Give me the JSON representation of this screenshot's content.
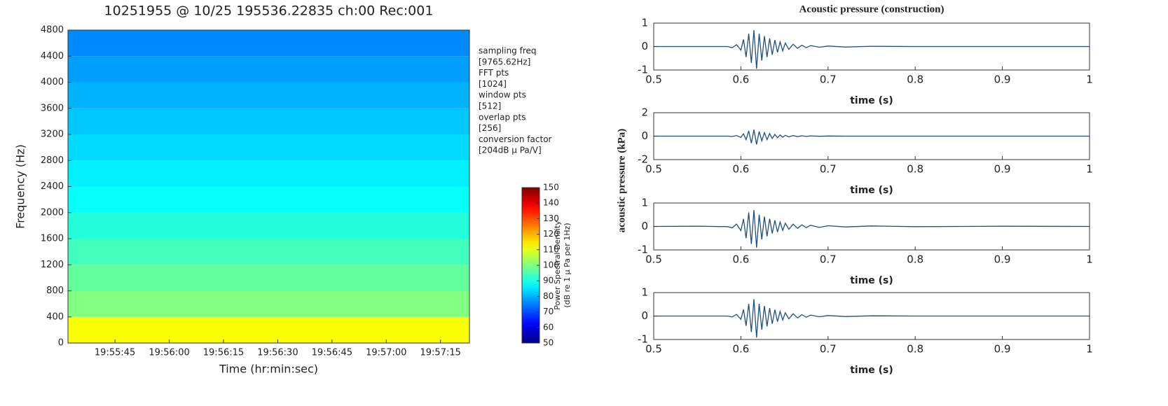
{
  "chart_data": [
    {
      "type": "heatmap",
      "title": "10251955 @ 10/25 195536.22835 ch:00 Rec:001",
      "xlabel": "Time (hr:min:sec)",
      "ylabel": "Frequency (Hz)",
      "xlim": [
        "19:55:32",
        "19:57:23"
      ],
      "xticks": [
        "19:55:45",
        "19:56:00",
        "19:56:15",
        "19:56:30",
        "19:56:45",
        "19:57:00",
        "19:57:15"
      ],
      "ylim": [
        0,
        4800
      ],
      "yticks": [
        0,
        400,
        800,
        1200,
        1600,
        2000,
        2400,
        2800,
        3200,
        3600,
        4000,
        4400,
        4800
      ],
      "y_bins": [
        0,
        400,
        800,
        1200,
        1600,
        2000,
        2400,
        2800,
        3200,
        3600,
        4000,
        4400,
        4800
      ],
      "values": [
        112,
        100,
        97,
        94,
        91,
        88,
        86,
        84,
        82,
        80,
        78,
        76
      ],
      "colormap": "jet",
      "zlim": [
        50,
        150
      ],
      "zticks": [
        50,
        60,
        70,
        80,
        90,
        100,
        110,
        120,
        130,
        140,
        150
      ],
      "colorbar_label": [
        "Power Spectral Density",
        "(dB re 1 μ Pa per 1Hz)"
      ],
      "annotations": [
        "sampling freq",
        "[9765.62Hz]",
        "FFT pts",
        "[1024]",
        "window pts",
        "[512]",
        "overlap pts",
        "[256]",
        "conversion factor",
        "[204dB    μ Pa/V]"
      ]
    },
    {
      "type": "line",
      "title": "Acoustic pressure (construction)",
      "ylabel": "acoustic pressure (kPa)",
      "xlabel": "time (s)",
      "color": "#1f4f82",
      "xlim": [
        0.5,
        1
      ],
      "xticks": [
        0.5,
        0.6,
        0.7,
        0.8,
        0.9,
        1
      ],
      "ylim": [
        -1,
        1
      ],
      "yticks": [
        -1,
        0,
        1
      ],
      "x": [
        0.5,
        0.55,
        0.585,
        0.59,
        0.595,
        0.6,
        0.603,
        0.606,
        0.609,
        0.612,
        0.615,
        0.618,
        0.621,
        0.624,
        0.627,
        0.63,
        0.633,
        0.636,
        0.639,
        0.642,
        0.645,
        0.648,
        0.651,
        0.655,
        0.66,
        0.665,
        0.67,
        0.675,
        0.68,
        0.69,
        0.7,
        0.72,
        0.75,
        0.8,
        0.9,
        1
      ],
      "values": [
        0,
        0,
        0,
        -0.05,
        0.08,
        -0.15,
        0.3,
        -0.45,
        0.55,
        -0.7,
        0.7,
        -0.95,
        0.55,
        -0.6,
        0.45,
        -0.45,
        0.35,
        -0.35,
        0.28,
        -0.25,
        0.2,
        -0.18,
        0.15,
        -0.12,
        0.1,
        -0.08,
        0.06,
        -0.05,
        0.04,
        -0.03,
        0.02,
        -0.02,
        0.01,
        0,
        0,
        0
      ]
    },
    {
      "type": "line",
      "xlabel": "time (s)",
      "color": "#1f4f82",
      "xlim": [
        0.5,
        1
      ],
      "xticks": [
        0.5,
        0.6,
        0.7,
        0.8,
        0.9,
        1
      ],
      "ylim": [
        -2,
        2
      ],
      "yticks": [
        -2,
        0,
        2
      ],
      "x": [
        0.5,
        0.55,
        0.585,
        0.59,
        0.595,
        0.6,
        0.603,
        0.606,
        0.609,
        0.612,
        0.615,
        0.618,
        0.621,
        0.624,
        0.627,
        0.63,
        0.633,
        0.636,
        0.639,
        0.642,
        0.645,
        0.648,
        0.651,
        0.655,
        0.66,
        0.665,
        0.67,
        0.675,
        0.68,
        0.69,
        0.7,
        0.72,
        0.75,
        0.8,
        0.9,
        1
      ],
      "values": [
        0,
        0,
        0,
        -0.03,
        0.05,
        -0.1,
        0.2,
        -0.3,
        0.45,
        -0.6,
        0.55,
        -0.7,
        0.4,
        -0.4,
        0.3,
        -0.3,
        0.22,
        -0.2,
        0.15,
        -0.14,
        0.1,
        -0.09,
        0.07,
        -0.06,
        0.05,
        -0.04,
        0.03,
        -0.02,
        0.02,
        -0.01,
        0.01,
        0,
        0,
        0,
        0,
        0
      ]
    },
    {
      "type": "line",
      "xlabel": "time (s)",
      "color": "#1f4f82",
      "xlim": [
        0.5,
        1
      ],
      "xticks": [
        0.5,
        0.6,
        0.7,
        0.8,
        0.9,
        1
      ],
      "ylim": [
        -1,
        1
      ],
      "yticks": [
        -1,
        0,
        1
      ],
      "x": [
        0.5,
        0.55,
        0.585,
        0.59,
        0.595,
        0.6,
        0.603,
        0.606,
        0.609,
        0.612,
        0.615,
        0.618,
        0.621,
        0.624,
        0.627,
        0.63,
        0.633,
        0.636,
        0.639,
        0.642,
        0.645,
        0.648,
        0.651,
        0.655,
        0.66,
        0.665,
        0.67,
        0.675,
        0.68,
        0.69,
        0.7,
        0.72,
        0.75,
        0.8,
        0.9,
        1
      ],
      "values": [
        0,
        0.01,
        -0.01,
        -0.06,
        0.1,
        -0.18,
        0.32,
        -0.5,
        0.6,
        -0.75,
        0.7,
        -0.9,
        0.5,
        -0.55,
        0.42,
        -0.42,
        0.33,
        -0.3,
        0.26,
        -0.24,
        0.19,
        -0.17,
        0.14,
        -0.12,
        0.1,
        -0.08,
        0.07,
        -0.05,
        0.05,
        -0.04,
        0.03,
        -0.02,
        0.02,
        -0.01,
        0.01,
        0
      ]
    },
    {
      "type": "line",
      "xlabel": "time (s)",
      "color": "#1f4f82",
      "xlim": [
        0.5,
        1
      ],
      "xticks": [
        0.5,
        0.6,
        0.7,
        0.8,
        0.9,
        1
      ],
      "ylim": [
        -1,
        1
      ],
      "yticks": [
        -1,
        0,
        1
      ],
      "x": [
        0.5,
        0.55,
        0.585,
        0.59,
        0.595,
        0.6,
        0.603,
        0.606,
        0.609,
        0.612,
        0.615,
        0.618,
        0.621,
        0.624,
        0.627,
        0.63,
        0.633,
        0.636,
        0.639,
        0.642,
        0.645,
        0.648,
        0.651,
        0.655,
        0.66,
        0.665,
        0.67,
        0.675,
        0.68,
        0.69,
        0.7,
        0.72,
        0.75,
        0.8,
        0.9,
        1
      ],
      "values": [
        0,
        0,
        0,
        -0.04,
        0.07,
        -0.14,
        0.28,
        -0.42,
        0.52,
        -0.68,
        0.72,
        -0.92,
        0.52,
        -0.58,
        0.43,
        -0.44,
        0.34,
        -0.33,
        0.27,
        -0.24,
        0.2,
        -0.17,
        0.14,
        -0.12,
        0.1,
        -0.08,
        0.06,
        -0.05,
        0.04,
        -0.03,
        0.02,
        -0.02,
        0.01,
        0,
        0,
        0
      ]
    }
  ]
}
